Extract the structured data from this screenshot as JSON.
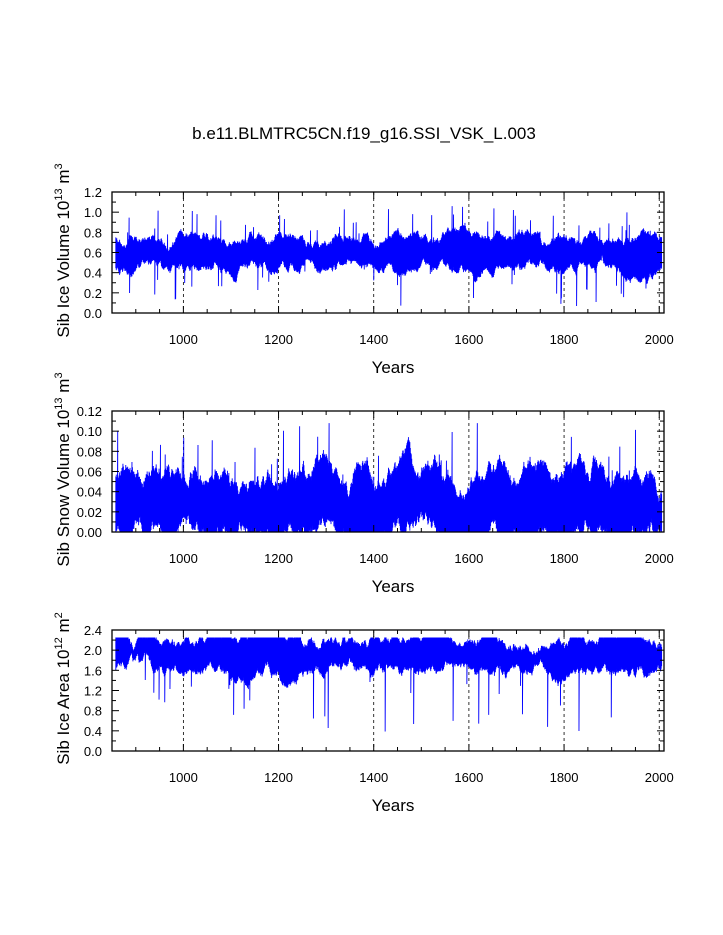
{
  "chart_data": {
    "type": "line",
    "title": "b.e11.BLMTRC5CN.f19_g16.SSI_VSK_L.003",
    "series_color": "#0000ff",
    "xlim": [
      850,
      2010
    ],
    "xticks": [
      1000,
      1200,
      1400,
      1600,
      1800,
      2000
    ],
    "xtick_labels": [
      "1000",
      "1200",
      "1400",
      "1600",
      "1800",
      "2000"
    ],
    "xlabel": "Years",
    "grid": "dashed vertical lines at major x ticks",
    "panels": [
      {
        "ylabel_main": "Sib Ice Volume 10",
        "ylabel_exp": "13",
        "ylabel_unit": " m",
        "ylabel_unit_exp": "3",
        "ylim": [
          0.0,
          1.2
        ],
        "yticks": [
          0.0,
          0.2,
          0.4,
          0.6,
          0.8,
          1.0,
          1.2
        ],
        "ytick_labels": [
          "0.0",
          "0.2",
          "0.4",
          "0.6",
          "0.8",
          "1.0",
          "1.2"
        ],
        "signal": {
          "upper_mean": 0.75,
          "lower_mean": 0.45,
          "peak_max": 1.06,
          "trough_min": 0.07
        },
        "series_name": "Sib Ice Volume"
      },
      {
        "ylabel_main": "Sib Snow Volume 10",
        "ylabel_exp": "13",
        "ylabel_unit": " m",
        "ylabel_unit_exp": "3",
        "ylim": [
          0.0,
          0.12
        ],
        "yticks": [
          0.0,
          0.02,
          0.04,
          0.06,
          0.08,
          0.1,
          0.12
        ],
        "ytick_labels": [
          "0.00",
          "0.02",
          "0.04",
          "0.06",
          "0.08",
          "0.10",
          "0.12"
        ],
        "signal": {
          "upper_mean": 0.058,
          "lower_mean": 0.0,
          "peak_max": 0.108,
          "trough_min": 0.0
        },
        "series_name": "Sib Snow Volume"
      },
      {
        "ylabel_main": "Sib Ice Area 10",
        "ylabel_exp": "12",
        "ylabel_unit": " m",
        "ylabel_unit_exp": "2",
        "ylim": [
          0.0,
          2.4
        ],
        "yticks": [
          0.0,
          0.4,
          0.8,
          1.2,
          1.6,
          2.0,
          2.4
        ],
        "ytick_labels": [
          "0.0",
          "0.4",
          "0.8",
          "1.2",
          "1.6",
          "2.0",
          "2.4"
        ],
        "signal": {
          "upper_mean": 2.24,
          "lower_mean": 1.55,
          "peak_max": 2.25,
          "trough_min": 0.25
        },
        "series_name": "Sib Ice Area"
      }
    ]
  }
}
